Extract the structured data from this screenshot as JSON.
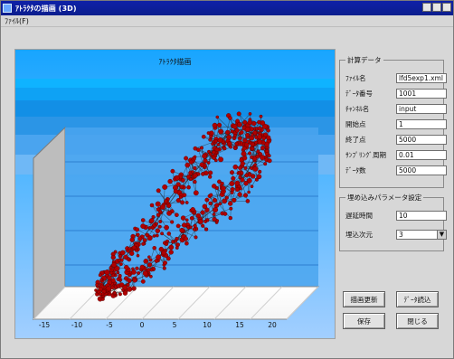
{
  "window": {
    "title": "ｱﾄﾗｸﾀの描画 (3D)",
    "icon": "app-icon"
  },
  "menu": {
    "items": [
      "ﾌｧｲﾙ(F)"
    ]
  },
  "chart": {
    "title": "ｱﾄﾗｸﾀ描画",
    "x_ticks": [
      "-15",
      "-10",
      "-5",
      "0",
      "5",
      "10",
      "15",
      "20"
    ]
  },
  "settings": {
    "group1_title": "計算データ",
    "rows": [
      {
        "label": "ﾌｧｲﾙ名",
        "value": "lfd5exp1.xml"
      },
      {
        "label": "ﾃﾞｰﾀ番号",
        "value": "1001"
      },
      {
        "label": "ﾁｬﾝﾈﾙ名",
        "value": "input"
      },
      {
        "label": "開始点",
        "value": "1"
      },
      {
        "label": "終了点",
        "value": "5000"
      },
      {
        "label": "ｻﾝﾌﾟﾘﾝｸﾞ周期",
        "value": "0.01"
      },
      {
        "label": "ﾃﾞｰﾀ数",
        "value": "5000"
      }
    ],
    "group2_title": "埋め込みパラメータ設定",
    "delay_label": "遅延時間",
    "delay_value": "10",
    "dim_label": "埋込次元",
    "dim_value": "3"
  },
  "buttons": {
    "redraw": "描画更新",
    "data_read": "ﾃﾞｰﾀ読込",
    "save": "保存",
    "close": "閉じる"
  }
}
